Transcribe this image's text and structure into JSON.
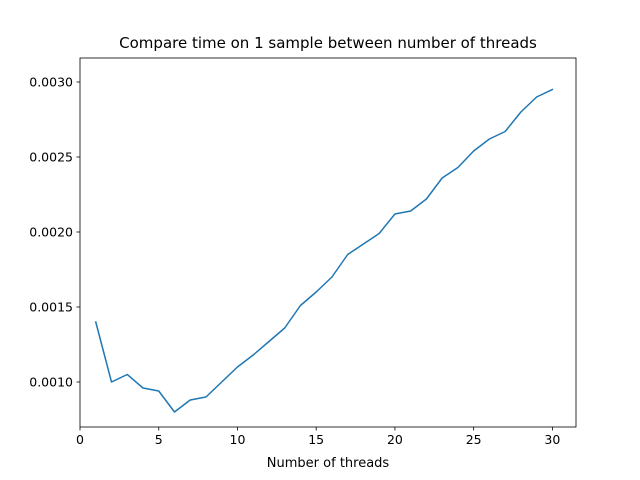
{
  "chart_data": {
    "type": "line",
    "title": "Compare time on 1 sample between number of threads",
    "xlabel": "Number of threads",
    "ylabel": "",
    "xlim": [
      0,
      31.5
    ],
    "ylim": [
      0.0007,
      0.00316
    ],
    "xticks": [
      0,
      5,
      10,
      15,
      20,
      25,
      30
    ],
    "xtick_labels": [
      "0",
      "5",
      "10",
      "15",
      "20",
      "25",
      "30"
    ],
    "yticks": [
      0.001,
      0.0015,
      0.002,
      0.0025,
      0.003
    ],
    "ytick_labels": [
      "0.0010",
      "0.0015",
      "0.0020",
      "0.0025",
      "0.0030"
    ],
    "grid": false,
    "legend": "none",
    "series": [
      {
        "color": "#1f77b4",
        "x": [
          1,
          2,
          3,
          4,
          5,
          6,
          7,
          8,
          9,
          10,
          11,
          12,
          13,
          14,
          15,
          16,
          17,
          18,
          19,
          20,
          21,
          22,
          23,
          24,
          25,
          26,
          27,
          28,
          29,
          30
        ],
        "values": [
          0.0014,
          0.001,
          0.00105,
          0.00096,
          0.00094,
          0.0008,
          0.00088,
          0.0009,
          0.001,
          0.0011,
          0.00118,
          0.00127,
          0.00136,
          0.00151,
          0.0016,
          0.0017,
          0.00185,
          0.00192,
          0.00199,
          0.00212,
          0.00214,
          0.00222,
          0.00236,
          0.00243,
          0.00254,
          0.00262,
          0.00267,
          0.0028,
          0.0029,
          0.00295
        ]
      }
    ]
  }
}
